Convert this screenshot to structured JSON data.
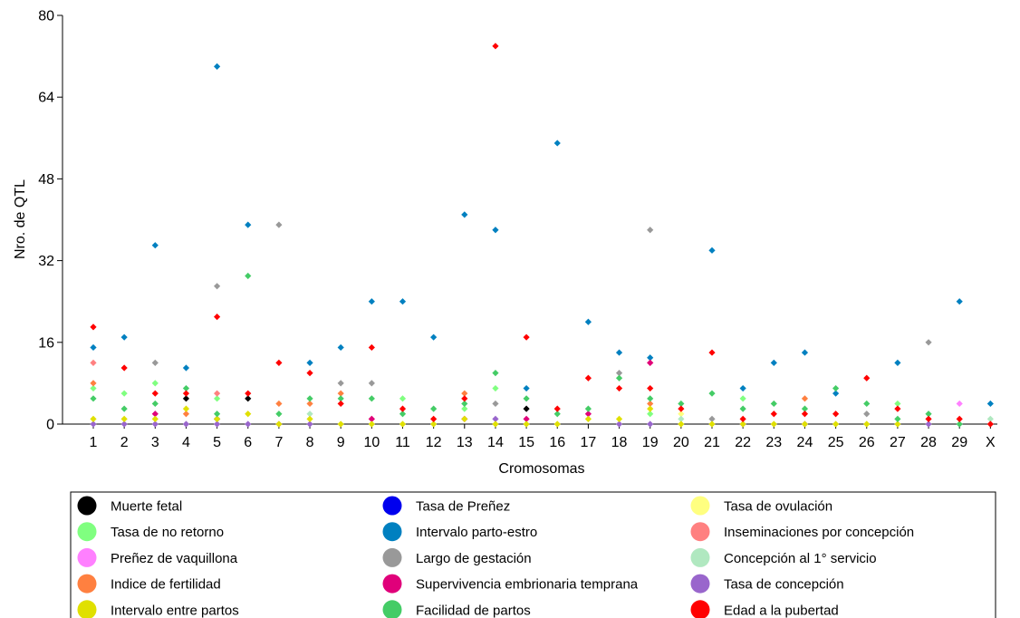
{
  "chart_data": {
    "type": "scatter",
    "xlabel": "Cromosomas",
    "ylabel": "Nro. de QTL",
    "ylim": [
      0,
      80
    ],
    "yticks": [
      "0",
      "16",
      "32",
      "48",
      "64",
      "80"
    ],
    "categories": [
      "1",
      "2",
      "3",
      "4",
      "5",
      "6",
      "7",
      "8",
      "9",
      "10",
      "11",
      "12",
      "13",
      "14",
      "15",
      "16",
      "17",
      "18",
      "19",
      "20",
      "21",
      "22",
      "23",
      "24",
      "25",
      "26",
      "27",
      "28",
      "29",
      "X"
    ],
    "grid": false,
    "legend_position": "bottom",
    "series": [
      {
        "name": "Muerte fetal",
        "color": "#000000",
        "points": [
          [
            "4",
            5
          ],
          [
            "5",
            1
          ],
          [
            "6",
            5
          ],
          [
            "15",
            3
          ]
        ]
      },
      {
        "name": "Tasa de Preñez",
        "color": "#0000ee",
        "points": []
      },
      {
        "name": "Tasa de ovulación",
        "color": "#ffff80",
        "points": [
          [
            "20",
            2
          ]
        ]
      },
      {
        "name": "Tasa de no retorno",
        "color": "#80ff80",
        "points": [
          [
            "1",
            7
          ],
          [
            "2",
            6
          ],
          [
            "3",
            8
          ],
          [
            "5",
            5
          ],
          [
            "11",
            5
          ],
          [
            "13",
            3
          ],
          [
            "14",
            7
          ],
          [
            "19",
            2
          ],
          [
            "22",
            5
          ],
          [
            "27",
            4
          ]
        ]
      },
      {
        "name": "Intervalo parto-estro",
        "color": "#0080c0",
        "points": [
          [
            "1",
            15
          ],
          [
            "2",
            17
          ],
          [
            "3",
            35
          ],
          [
            "4",
            11
          ],
          [
            "5",
            70
          ],
          [
            "6",
            39
          ],
          [
            "8",
            12
          ],
          [
            "9",
            15
          ],
          [
            "10",
            24
          ],
          [
            "11",
            24
          ],
          [
            "12",
            17
          ],
          [
            "13",
            41
          ],
          [
            "14",
            38
          ],
          [
            "15",
            7
          ],
          [
            "16",
            55
          ],
          [
            "17",
            20
          ],
          [
            "18",
            14
          ],
          [
            "19",
            13
          ],
          [
            "21",
            34
          ],
          [
            "22",
            7
          ],
          [
            "23",
            12
          ],
          [
            "24",
            14
          ],
          [
            "25",
            6
          ],
          [
            "27",
            12
          ],
          [
            "29",
            24
          ],
          [
            "X",
            4
          ]
        ]
      },
      {
        "name": "Inseminaciones por concepción",
        "color": "#ff8080",
        "points": [
          [
            "1",
            12
          ],
          [
            "5",
            6
          ],
          [
            "10",
            1
          ],
          [
            "19",
            12
          ]
        ]
      },
      {
        "name": "Preñez de vaquillona",
        "color": "#ff80ff",
        "points": [
          [
            "29",
            4
          ]
        ]
      },
      {
        "name": "Largo de gestación",
        "color": "#999999",
        "points": [
          [
            "3",
            12
          ],
          [
            "5",
            27
          ],
          [
            "7",
            39
          ],
          [
            "9",
            8
          ],
          [
            "10",
            8
          ],
          [
            "14",
            4
          ],
          [
            "18",
            10
          ],
          [
            "19",
            38
          ],
          [
            "21",
            1
          ],
          [
            "26",
            2
          ],
          [
            "28",
            16
          ]
        ]
      },
      {
        "name": "Concepción al 1° servicio",
        "color": "#b0e8c0",
        "points": [
          [
            "8",
            2
          ],
          [
            "20",
            1
          ],
          [
            "X",
            1
          ]
        ]
      },
      {
        "name": "Indice de fertilidad",
        "color": "#ff8040",
        "points": [
          [
            "1",
            8
          ],
          [
            "4",
            2
          ],
          [
            "7",
            4
          ],
          [
            "8",
            4
          ],
          [
            "9",
            6
          ],
          [
            "13",
            6
          ],
          [
            "19",
            4
          ],
          [
            "24",
            5
          ]
        ]
      },
      {
        "name": "Supervivencia embrionaria temprana",
        "color": "#e0007a",
        "points": [
          [
            "3",
            2
          ],
          [
            "10",
            1
          ],
          [
            "13",
            1
          ],
          [
            "15",
            1
          ],
          [
            "17",
            2
          ],
          [
            "19",
            12
          ]
        ]
      },
      {
        "name": "Tasa de concepción",
        "color": "#9966cc",
        "points": [
          [
            "1",
            0
          ],
          [
            "2",
            0
          ],
          [
            "3",
            0
          ],
          [
            "4",
            0
          ],
          [
            "5",
            0
          ],
          [
            "6",
            0
          ],
          [
            "7",
            0
          ],
          [
            "8",
            0
          ],
          [
            "14",
            1
          ],
          [
            "18",
            0
          ],
          [
            "19",
            0
          ],
          [
            "22",
            0
          ],
          [
            "24",
            0
          ],
          [
            "28",
            0
          ]
        ]
      },
      {
        "name": "Intervalo entre partos",
        "color": "#e0e000",
        "points": [
          [
            "1",
            1
          ],
          [
            "2",
            1
          ],
          [
            "3",
            1
          ],
          [
            "4",
            3
          ],
          [
            "5",
            1
          ],
          [
            "6",
            2
          ],
          [
            "7",
            0
          ],
          [
            "8",
            1
          ],
          [
            "9",
            0
          ],
          [
            "10",
            0
          ],
          [
            "11",
            0
          ],
          [
            "12",
            0
          ],
          [
            "13",
            1
          ],
          [
            "14",
            0
          ],
          [
            "15",
            0
          ],
          [
            "16",
            0
          ],
          [
            "17",
            1
          ],
          [
            "18",
            1
          ],
          [
            "19",
            3
          ],
          [
            "20",
            0
          ],
          [
            "21",
            0
          ],
          [
            "22",
            0
          ],
          [
            "23",
            0
          ],
          [
            "24",
            0
          ],
          [
            "25",
            0
          ],
          [
            "26",
            0
          ],
          [
            "27",
            0
          ]
        ]
      },
      {
        "name": "Facilidad de partos",
        "color": "#44cc66",
        "points": [
          [
            "1",
            5
          ],
          [
            "2",
            3
          ],
          [
            "3",
            4
          ],
          [
            "4",
            7
          ],
          [
            "5",
            2
          ],
          [
            "6",
            29
          ],
          [
            "7",
            2
          ],
          [
            "8",
            5
          ],
          [
            "9",
            5
          ],
          [
            "10",
            5
          ],
          [
            "11",
            2
          ],
          [
            "12",
            3
          ],
          [
            "13",
            4
          ],
          [
            "14",
            10
          ],
          [
            "15",
            5
          ],
          [
            "16",
            2
          ],
          [
            "17",
            3
          ],
          [
            "18",
            9
          ],
          [
            "19",
            5
          ],
          [
            "20",
            4
          ],
          [
            "21",
            6
          ],
          [
            "22",
            3
          ],
          [
            "23",
            4
          ],
          [
            "24",
            3
          ],
          [
            "25",
            7
          ],
          [
            "26",
            4
          ],
          [
            "27",
            1
          ],
          [
            "28",
            2
          ],
          [
            "29",
            0
          ]
        ]
      },
      {
        "name": "Edad a la pubertad",
        "color": "#ff0000",
        "points": [
          [
            "1",
            19
          ],
          [
            "2",
            11
          ],
          [
            "3",
            6
          ],
          [
            "4",
            6
          ],
          [
            "5",
            21
          ],
          [
            "6",
            6
          ],
          [
            "7",
            12
          ],
          [
            "8",
            10
          ],
          [
            "9",
            4
          ],
          [
            "10",
            15
          ],
          [
            "11",
            3
          ],
          [
            "12",
            1
          ],
          [
            "13",
            5
          ],
          [
            "14",
            74
          ],
          [
            "15",
            17
          ],
          [
            "16",
            3
          ],
          [
            "17",
            9
          ],
          [
            "18",
            7
          ],
          [
            "19",
            7
          ],
          [
            "20",
            3
          ],
          [
            "21",
            14
          ],
          [
            "22",
            1
          ],
          [
            "23",
            2
          ],
          [
            "24",
            2
          ],
          [
            "25",
            2
          ],
          [
            "26",
            9
          ],
          [
            "27",
            3
          ],
          [
            "28",
            1
          ],
          [
            "29",
            1
          ],
          [
            "X",
            0
          ]
        ]
      }
    ]
  }
}
